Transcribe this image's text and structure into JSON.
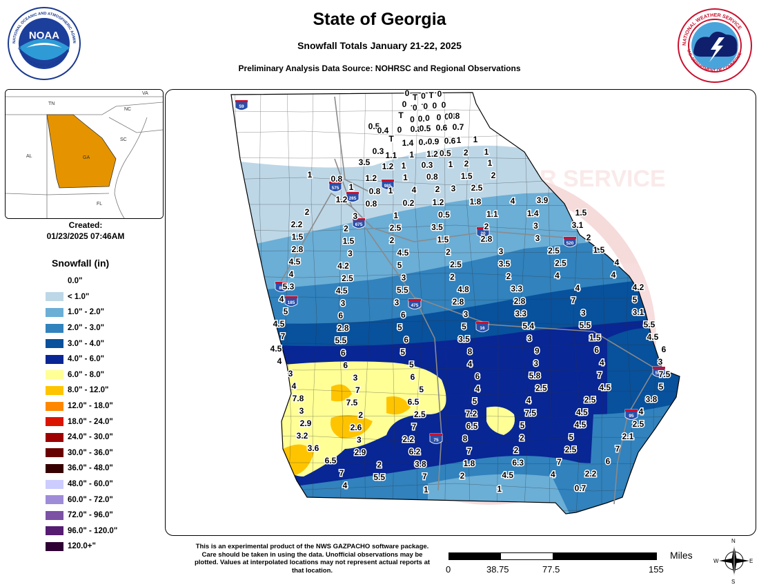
{
  "title": "State of Georgia",
  "subtitle": "Snowfall Totals January 21-22, 2025",
  "source": "Preliminary Analysis Data Source: NOHRSC and Regional Observations",
  "noaa_logo": {
    "text": "NOAA",
    "ring_text": "NATIONAL OCEANIC AND ATMOSPHERIC ADMINISTRATION",
    "bottom_text": "U.S. DEPARTMENT OF COMMERCE"
  },
  "nws_logo": {
    "ring_text": "NATIONAL WEATHER SERVICE",
    "bottom_text": "U.S. DEPARTMENT OF COMMERCE"
  },
  "inset": {
    "labels": [
      "VA",
      "TN",
      "NC",
      "SC",
      "AL",
      "GA",
      "FL"
    ]
  },
  "created_label": "Created:",
  "created_value": "01/23/2025 07:46AM",
  "legend": {
    "title": "Snowfall (in)",
    "items": [
      {
        "label": "0.0\"",
        "color": "#ffffff"
      },
      {
        "label": "< 1.0\"",
        "color": "#bdd7e7"
      },
      {
        "label": "1.0\" - 2.0\"",
        "color": "#6baed6"
      },
      {
        "label": "2.0\" - 3.0\"",
        "color": "#3182bd"
      },
      {
        "label": "3.0\" - 4.0\"",
        "color": "#08519c"
      },
      {
        "label": "4.0\" - 6.0\"",
        "color": "#082694"
      },
      {
        "label": "6.0\" - 8.0\"",
        "color": "#ffff96"
      },
      {
        "label": "8.0\" - 12.0\"",
        "color": "#ffc400"
      },
      {
        "label": "12.0\" - 18.0\"",
        "color": "#ff8700"
      },
      {
        "label": "18.0\" - 24.0\"",
        "color": "#db1400"
      },
      {
        "label": "24.0\" - 30.0\"",
        "color": "#9e0000"
      },
      {
        "label": "30.0\" - 36.0\"",
        "color": "#690000"
      },
      {
        "label": "36.0\" - 48.0\"",
        "color": "#360000"
      },
      {
        "label": "48.0\" - 60.0\"",
        "color": "#ccccff"
      },
      {
        "label": "60.0\" - 72.0\"",
        "color": "#9f8cd8"
      },
      {
        "label": "72.0\" - 96.0\"",
        "color": "#7c52a5"
      },
      {
        "label": "96.0\" - 120.0\"",
        "color": "#561c72"
      },
      {
        "label": "120.0+\"",
        "color": "#2e0033"
      }
    ]
  },
  "interstates": [
    "59",
    "575",
    "985",
    "285",
    "675",
    "20",
    "520",
    "85",
    "185",
    "475",
    "16",
    "516",
    "95",
    "75"
  ],
  "observations": [
    "0",
    "T",
    "0",
    "0",
    "T",
    "0",
    "0",
    "0",
    "T",
    "0",
    "T",
    "0",
    "0",
    "0",
    "T",
    "0",
    "0.4",
    "0",
    "0",
    "0.5",
    "0.8",
    "0.5",
    "0.4",
    "0",
    "0.8",
    "0.5",
    "0.6",
    "0.7",
    "T",
    "1.4",
    "0.4",
    "0.9",
    "0.6",
    "1",
    "1",
    "0.3",
    "1.1",
    "1",
    "1.2",
    "0.5",
    "2",
    "1",
    "3.5",
    "1.2",
    "1",
    "0.3",
    "1",
    "2",
    "1",
    "1",
    "0.8",
    "1.2",
    "1",
    "0.8",
    "1.5",
    "2",
    "1",
    "0.8",
    "1",
    "4",
    "2",
    "3",
    "2.5",
    "1.2",
    "0.8",
    "0.2",
    "1.2",
    "1.8",
    "4",
    "3.9",
    "2",
    "3",
    "1",
    "0.5",
    "1.1",
    "1.4",
    "1.5",
    "2.2",
    "2",
    "2.5",
    "3.5",
    "2",
    "3",
    "3.1",
    "1.5",
    "1.5",
    "2",
    "1.5",
    "2.8",
    "3",
    "2",
    "2.8",
    "3",
    "4.5",
    "2",
    "3",
    "2.5",
    "1.5",
    "4.5",
    "4.2",
    "5",
    "2.5",
    "3.5",
    "2.5",
    "4",
    "4",
    "2.5",
    "3",
    "2",
    "2",
    "4",
    "4",
    "5.3",
    "4.5",
    "5.5",
    "4.8",
    "3.3",
    "4",
    "4.2",
    "4",
    "3",
    "3",
    "2.8",
    "2.8",
    "7",
    "5",
    "5",
    "6",
    "6",
    "3",
    "3.3",
    "3",
    "3.1",
    "4.5",
    "2.8",
    "5",
    "5",
    "5.4",
    "5.5",
    "5.5",
    "7",
    "5.5",
    "6",
    "3.5",
    "3",
    "1.5",
    "4.5",
    "4.5",
    "6",
    "5",
    "8",
    "9",
    "6",
    "6",
    "4",
    "6",
    "5",
    "4",
    "3",
    "4",
    "3",
    "3",
    "3",
    "6",
    "6",
    "5.8",
    "7",
    "7.5",
    "4",
    "7",
    "5",
    "4",
    "2.5",
    "4.5",
    "5",
    "7.8",
    "7.5",
    "6.5",
    "5",
    "4",
    "2.5",
    "3.8",
    "3",
    "2",
    "2.5",
    "7.2",
    "7.5",
    "4.5",
    "4",
    "2.9",
    "2.6",
    "7",
    "6.5",
    "5",
    "4.5",
    "2.5",
    "3.2",
    "3",
    "2.2",
    "8",
    "2",
    "5",
    "2.1",
    "3.6",
    "2.9",
    "6.2",
    "7",
    "2",
    "2.5",
    "7",
    "6.5",
    "2",
    "3.8",
    "1.8",
    "6.3",
    "7",
    "6",
    "7",
    "5.5",
    "7",
    "2",
    "4.5",
    "4",
    "2.2",
    "4",
    "1",
    "1",
    "0.7"
  ],
  "disclaimer": "This is an experimental product of the NWS GAZPACHO software package. Care should be taken in using the data. Unofficial observations may be plotted. Values at interpolated locations may not represent actual reports at that location.",
  "scale": {
    "unit": "Miles",
    "labels": [
      "0",
      "38.75",
      "77.5",
      "155"
    ]
  },
  "compass": {
    "n": "N",
    "s": "S",
    "e": "E",
    "w": "W"
  },
  "watermark": "NATIONAL WEATHER SERVICE"
}
